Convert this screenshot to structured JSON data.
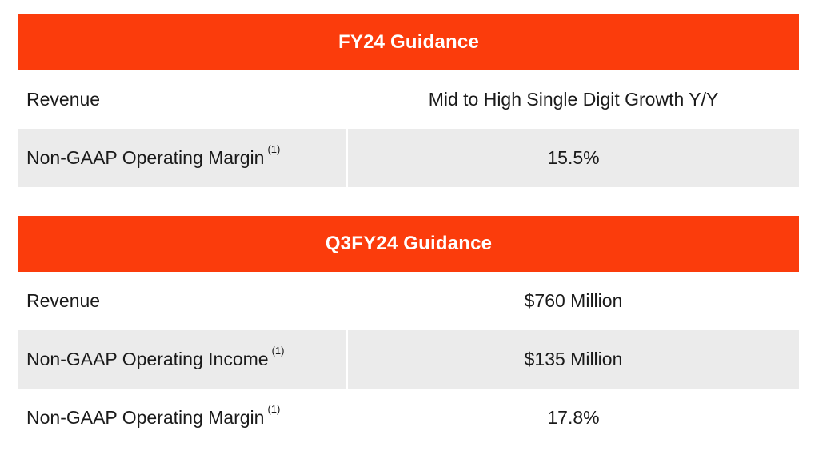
{
  "tables": [
    {
      "title": "FY24 Guidance",
      "rows": [
        {
          "label": "Revenue",
          "footnote": "",
          "value": "Mid to High Single Digit Growth Y/Y"
        },
        {
          "label": "Non-GAAP Operating Margin",
          "footnote": "(1)",
          "value": "15.5%"
        }
      ]
    },
    {
      "title": "Q3FY24 Guidance",
      "rows": [
        {
          "label": "Revenue",
          "footnote": "",
          "value": "$760 Million"
        },
        {
          "label": "Non-GAAP Operating Income",
          "footnote": "(1)",
          "value": "$135 Million"
        },
        {
          "label": "Non-GAAP Operating Margin",
          "footnote": "(1)",
          "value": "17.8%"
        }
      ]
    }
  ],
  "colors": {
    "header_bg": "#fb3c0c",
    "header_text": "#ffffff",
    "shaded_row": "#ebebeb"
  }
}
